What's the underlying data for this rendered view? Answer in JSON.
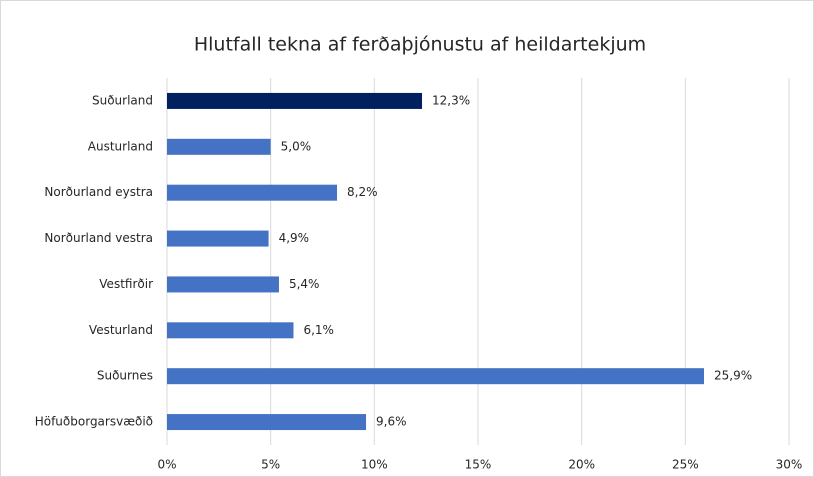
{
  "chart_data": {
    "type": "bar",
    "orientation": "horizontal",
    "title": "Hlutfall tekna af ferðaþjónustu af heildartekjum",
    "categories": [
      "Suðurland",
      "Austurland",
      "Norðurland eystra",
      "Norðurland vestra",
      "Vestfirðir",
      "Vesturland",
      "Suðurnes",
      "Höfuðborgarsvæðið"
    ],
    "values": [
      12.3,
      5.0,
      8.2,
      4.9,
      5.4,
      6.1,
      25.9,
      9.6
    ],
    "value_labels": [
      "12,3%",
      "5,0%",
      "8,2%",
      "4,9%",
      "5,4%",
      "6,1%",
      "25,9%",
      "9,6%"
    ],
    "colors": [
      "#002060",
      "#4472c4",
      "#4472c4",
      "#4472c4",
      "#4472c4",
      "#4472c4",
      "#4472c4",
      "#4472c4"
    ],
    "xlim": [
      0,
      30
    ],
    "xticks": [
      {
        "value": 0,
        "label": "0%"
      },
      {
        "value": 5,
        "label": "5%"
      },
      {
        "value": 10,
        "label": "10%"
      },
      {
        "value": 15,
        "label": "15%"
      },
      {
        "value": 20,
        "label": "20%"
      },
      {
        "value": 25,
        "label": "25%"
      },
      {
        "value": 30,
        "label": "30%"
      }
    ],
    "grid": true
  }
}
